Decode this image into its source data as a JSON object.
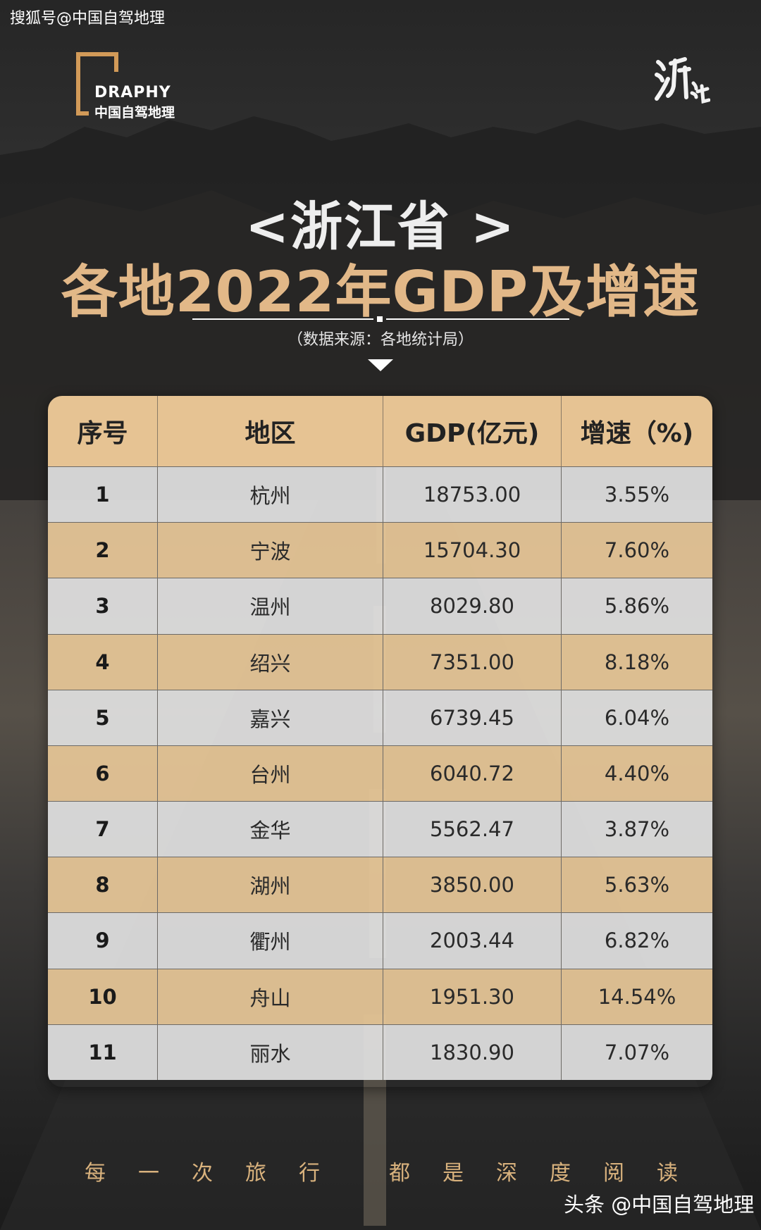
{
  "watermark_top": "搜狐号@中国自驾地理",
  "logo": {
    "en": "DRAPHY",
    "cn": "中国自驾地理"
  },
  "calligraphy": "浙江",
  "title_line1": "<浙江省 >",
  "title_line2": "各地2022年GDP及增速",
  "source": "（数据来源：各地统计局）",
  "table": {
    "headers": [
      "序号",
      "地区",
      "GDP(亿元)",
      "增速（%)"
    ],
    "rows": [
      [
        "1",
        "杭州",
        "18753.00",
        "3.55%"
      ],
      [
        "2",
        "宁波",
        "15704.30",
        "7.60%"
      ],
      [
        "3",
        "温州",
        "8029.80",
        "5.86%"
      ],
      [
        "4",
        "绍兴",
        "7351.00",
        "8.18%"
      ],
      [
        "5",
        "嘉兴",
        "6739.45",
        "6.04%"
      ],
      [
        "6",
        "台州",
        "6040.72",
        "4.40%"
      ],
      [
        "7",
        "金华",
        "5562.47",
        "3.87%"
      ],
      [
        "8",
        "湖州",
        "3850.00",
        "5.63%"
      ],
      [
        "9",
        "衢州",
        "2003.44",
        "6.82%"
      ],
      [
        "10",
        "舟山",
        "1951.30",
        "14.54%"
      ],
      [
        "11",
        "丽水",
        "1830.90",
        "7.07%"
      ]
    ]
  },
  "slogan_left": [
    "每",
    "一",
    "次",
    "旅",
    "行"
  ],
  "slogan_right": [
    "都",
    "是",
    "深",
    "度",
    "阅",
    "读"
  ],
  "watermark_bottom": "头条 @中国自驾地理",
  "colors": {
    "accent": "#e2b888",
    "row_tan": "#e4c496",
    "row_gray": "#e2e2e2",
    "header": "#e6c393"
  }
}
